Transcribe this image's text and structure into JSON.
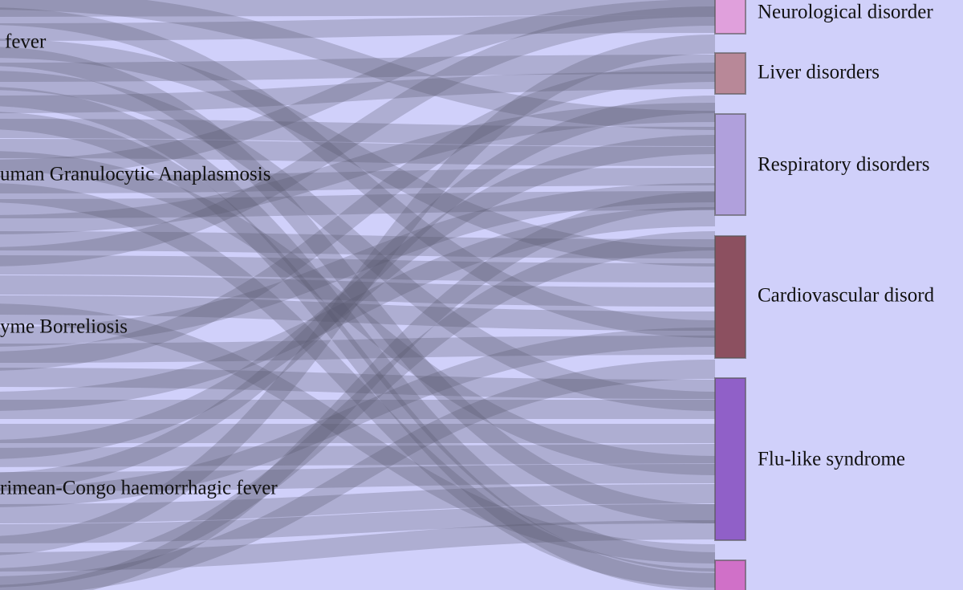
{
  "sources": [
    {
      "label": "fever"
    },
    {
      "label": "uman Granulocytic Anaplasmosis"
    },
    {
      "label": "yme Borreliosis"
    },
    {
      "label": "rimean-Congo haemorrhagic fever"
    }
  ],
  "targets": [
    {
      "label": "Neurological disorder"
    },
    {
      "label": "Liver disorders"
    },
    {
      "label": "Respiratory disorders"
    },
    {
      "label": "Cardiovascular disord"
    },
    {
      "label": "Flu-like syndrome"
    }
  ]
}
